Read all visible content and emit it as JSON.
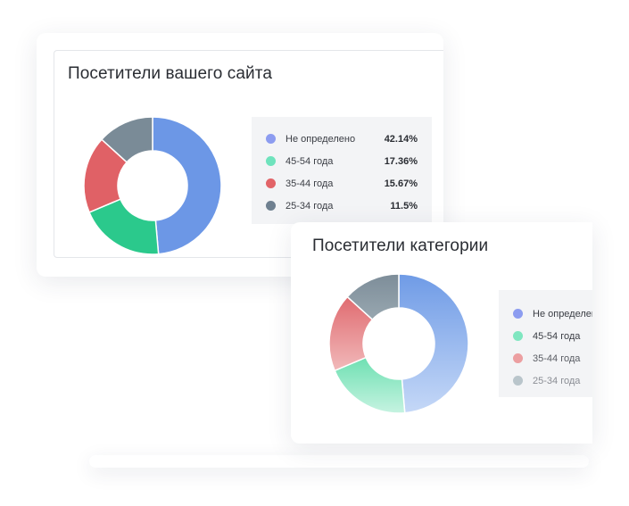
{
  "colors": {
    "undefined": "#6c97e6",
    "age_45_54": "#2bc98c",
    "age_35_44": "#e06166",
    "age_25_34": "#7a8b97"
  },
  "chart_data": [
    {
      "type": "pie",
      "title": "Посетители вашего сайта",
      "categories": [
        "Не определено",
        "45-54 года",
        "35-44 года",
        "25-34 года"
      ],
      "values": [
        42.14,
        17.36,
        15.67,
        11.5
      ],
      "value_labels": [
        "42.14%",
        "17.36%",
        "15.67%",
        "11.5%"
      ],
      "legend_labels": [
        "Не определено",
        "45-54 года",
        "35-44 года",
        "25-34 года"
      ],
      "donut": true,
      "legend_placement": "right",
      "colors": [
        "#6c97e6",
        "#2bc98c",
        "#e06166",
        "#7a8b97"
      ]
    },
    {
      "type": "pie",
      "title": "Посетители категории",
      "categories": [
        "Не определено",
        "45-54 года",
        "35-44 года",
        "25-34 года"
      ],
      "values": [
        42.14,
        17.36,
        15.67,
        11.5
      ],
      "legend_labels": [
        "Не определен",
        "45-54 года",
        "35-44 года",
        "25-34 года"
      ],
      "donut": true,
      "legend_placement": "right",
      "colors": [
        "#7aa3ea",
        "#8ce8c4",
        "#ec9a9c",
        "#b2bfc6"
      ]
    }
  ]
}
